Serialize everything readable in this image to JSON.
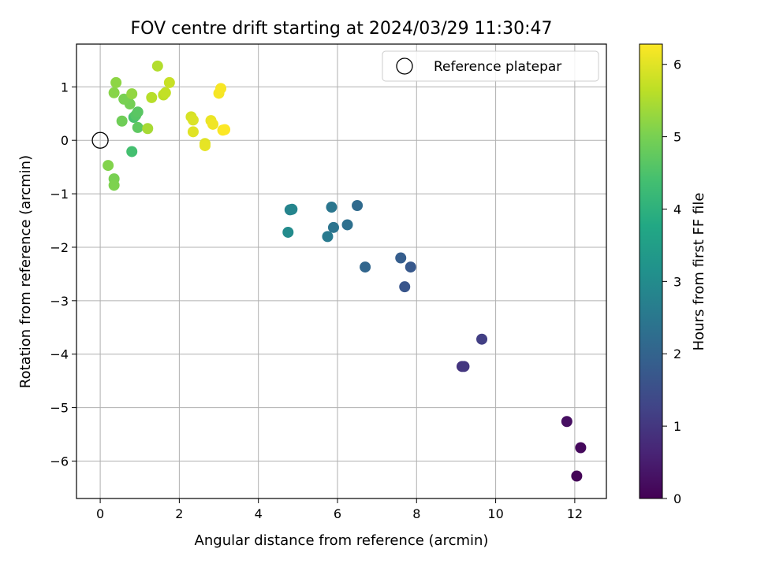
{
  "chart_data": {
    "type": "scatter",
    "title": "FOV centre drift starting at 2024/03/29 11:30:47",
    "xlabel": "Angular distance from reference (arcmin)",
    "ylabel": "Rotation from reference (arcmin)",
    "xlim": [
      -0.6,
      12.8
    ],
    "ylim": [
      -6.7,
      1.8
    ],
    "xticks": [
      0,
      2,
      4,
      6,
      8,
      10,
      12
    ],
    "yticks": [
      1,
      0,
      -1,
      -2,
      -3,
      -4,
      -5,
      -6
    ],
    "xtick_labels": [
      "0",
      "2",
      "4",
      "6",
      "8",
      "10",
      "12"
    ],
    "ytick_labels": [
      "1",
      "0",
      "−1",
      "−2",
      "−3",
      "−4",
      "−5",
      "−6"
    ],
    "grid": true,
    "legend": {
      "placement": "top-right",
      "entries": [
        "Reference platepar"
      ]
    },
    "reference_point": {
      "x": 0,
      "y": 0,
      "label": "Reference platepar",
      "marker": "open-circle"
    },
    "colorbar": {
      "label": "Hours from first FF file",
      "colormap": "viridis",
      "range": [
        0,
        6.28
      ],
      "ticks": [
        0,
        1,
        2,
        3,
        4,
        5,
        6
      ],
      "tick_labels": [
        "0",
        "1",
        "2",
        "3",
        "4",
        "5",
        "6"
      ]
    },
    "points": [
      {
        "x": 12.05,
        "y": -6.28,
        "t": 0.05
      },
      {
        "x": 12.15,
        "y": -5.75,
        "t": 0.15
      },
      {
        "x": 11.8,
        "y": -5.26,
        "t": 0.25
      },
      {
        "x": 9.15,
        "y": -4.23,
        "t": 0.95
      },
      {
        "x": 9.2,
        "y": -4.23,
        "t": 1.0
      },
      {
        "x": 9.65,
        "y": -3.72,
        "t": 1.15
      },
      {
        "x": 7.7,
        "y": -2.74,
        "t": 1.65
      },
      {
        "x": 7.85,
        "y": -2.37,
        "t": 1.75
      },
      {
        "x": 7.6,
        "y": -2.2,
        "t": 1.85
      },
      {
        "x": 6.7,
        "y": -2.37,
        "t": 2.05
      },
      {
        "x": 6.5,
        "y": -1.22,
        "t": 2.15
      },
      {
        "x": 6.25,
        "y": -1.58,
        "t": 2.3
      },
      {
        "x": 5.9,
        "y": -1.63,
        "t": 2.4
      },
      {
        "x": 5.85,
        "y": -1.25,
        "t": 2.45
      },
      {
        "x": 5.75,
        "y": -1.8,
        "t": 2.55
      },
      {
        "x": 4.8,
        "y": -1.3,
        "t": 2.8
      },
      {
        "x": 4.85,
        "y": -1.29,
        "t": 2.85
      },
      {
        "x": 4.75,
        "y": -1.72,
        "t": 3.0
      },
      {
        "x": 0.8,
        "y": -0.21,
        "t": 4.4
      },
      {
        "x": 0.85,
        "y": 0.43,
        "t": 4.45
      },
      {
        "x": 0.9,
        "y": 0.47,
        "t": 4.6
      },
      {
        "x": 0.95,
        "y": 0.53,
        "t": 4.65
      },
      {
        "x": 0.95,
        "y": 0.24,
        "t": 4.7
      },
      {
        "x": 0.55,
        "y": 0.36,
        "t": 4.9
      },
      {
        "x": 0.75,
        "y": 0.68,
        "t": 4.95
      },
      {
        "x": 0.6,
        "y": 0.77,
        "t": 5.0
      },
      {
        "x": 0.35,
        "y": -0.72,
        "t": 5.0
      },
      {
        "x": 0.35,
        "y": -0.84,
        "t": 5.05
      },
      {
        "x": 0.2,
        "y": -0.47,
        "t": 5.1
      },
      {
        "x": 0.35,
        "y": 0.89,
        "t": 5.15
      },
      {
        "x": 0.4,
        "y": 1.08,
        "t": 5.2
      },
      {
        "x": 0.8,
        "y": 0.87,
        "t": 5.25
      },
      {
        "x": 1.2,
        "y": 0.22,
        "t": 5.45
      },
      {
        "x": 1.3,
        "y": 0.8,
        "t": 5.6
      },
      {
        "x": 1.45,
        "y": 1.39,
        "t": 5.55
      },
      {
        "x": 1.6,
        "y": 0.85,
        "t": 5.65
      },
      {
        "x": 1.65,
        "y": 0.89,
        "t": 5.7
      },
      {
        "x": 1.75,
        "y": 1.08,
        "t": 5.75
      },
      {
        "x": 2.3,
        "y": 0.44,
        "t": 5.9
      },
      {
        "x": 2.35,
        "y": 0.38,
        "t": 5.95
      },
      {
        "x": 2.35,
        "y": 0.16,
        "t": 6.0
      },
      {
        "x": 2.65,
        "y": -0.06,
        "t": 6.0
      },
      {
        "x": 2.65,
        "y": -0.1,
        "t": 6.05
      },
      {
        "x": 2.8,
        "y": 0.37,
        "t": 6.1
      },
      {
        "x": 2.85,
        "y": 0.3,
        "t": 6.15
      },
      {
        "x": 3.0,
        "y": 0.88,
        "t": 6.2
      },
      {
        "x": 3.05,
        "y": 0.97,
        "t": 6.22
      },
      {
        "x": 3.1,
        "y": 0.19,
        "t": 6.25
      },
      {
        "x": 3.15,
        "y": 0.2,
        "t": 6.27
      }
    ]
  }
}
